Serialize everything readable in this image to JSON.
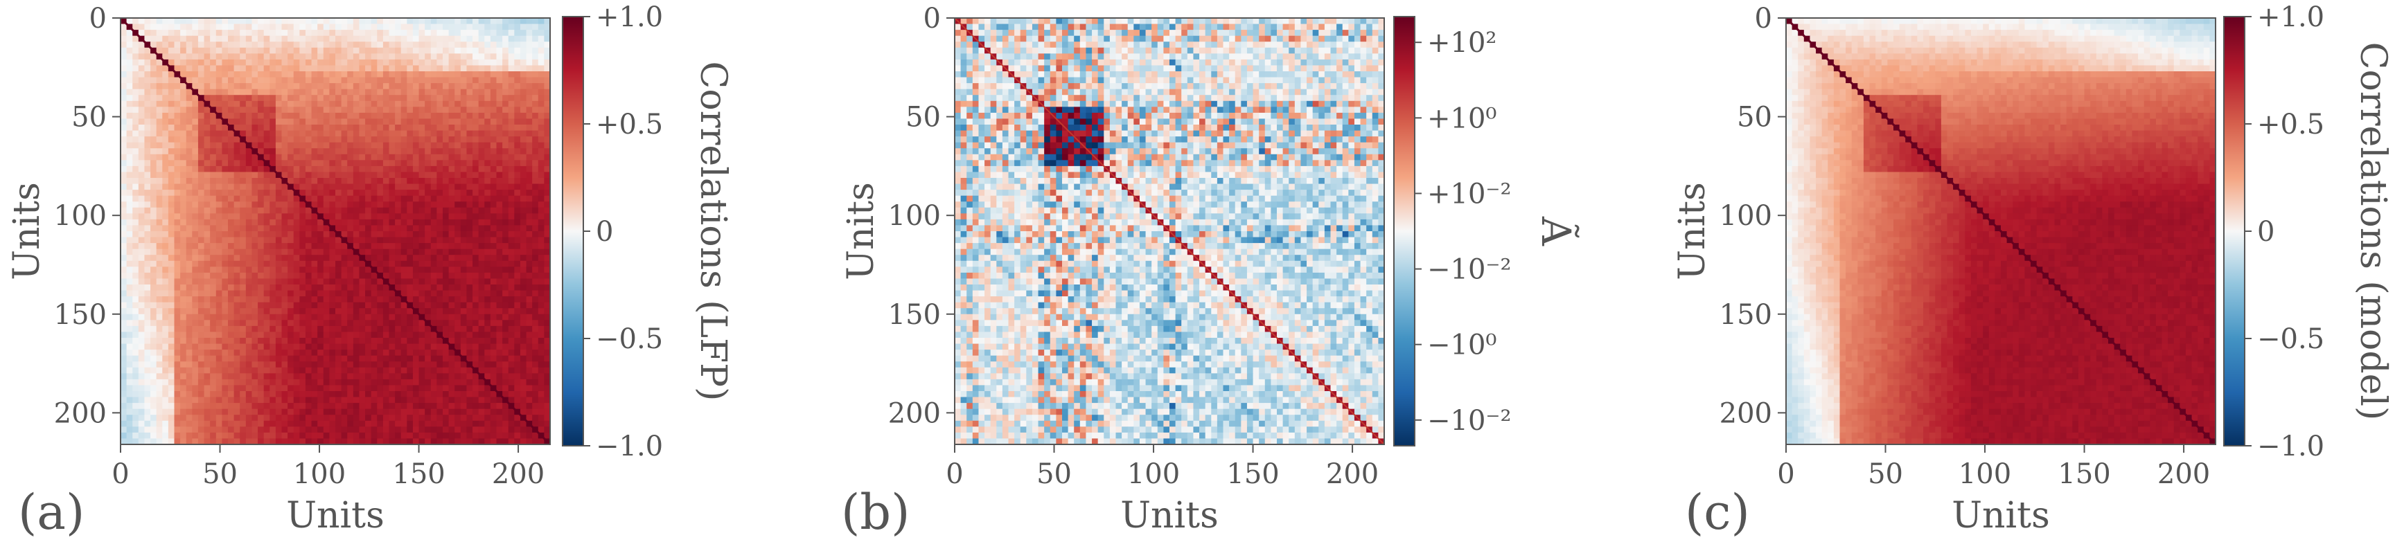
{
  "colors": {
    "text": "#555555",
    "heat_neg_strong": "#053061",
    "heat_neg": "#4393c3",
    "heat_zero": "#f7f7f7",
    "heat_pos": "#d6604d",
    "heat_pos_strong": "#67001f"
  },
  "chart_data": [
    {
      "type": "heatmap",
      "panel_label": "(a)",
      "xlabel": "Units",
      "ylabel": "Units",
      "colorbar_label": "Correlations (LFP)",
      "xlim": [
        0,
        216
      ],
      "ylim": [
        216,
        0
      ],
      "x_ticks": [
        0,
        50,
        100,
        150,
        200
      ],
      "y_ticks": [
        0,
        50,
        100,
        150,
        200
      ],
      "x_tick_labels": [
        "0",
        "50",
        "100",
        "150",
        "200"
      ],
      "y_tick_labels": [
        "0",
        "50",
        "100",
        "150",
        "200"
      ],
      "colorbar_range": [
        -1.0,
        1.0
      ],
      "colorbar_ticks": [
        1.0,
        0.5,
        0,
        -0.5,
        -1.0
      ],
      "colorbar_tick_labels": [
        "+1.0",
        "+0.5",
        "0",
        "−0.5",
        "−1.0"
      ],
      "colormap": "RdBu_r",
      "pattern": "symmetric correlation matrix, diagonal = 1, strong positive cluster around units 40-75, correlations grow positive for units 50-216, slightly negative between early units (0-30) and late units"
    },
    {
      "type": "heatmap",
      "panel_label": "(b)",
      "xlabel": "Units",
      "ylabel": "Units",
      "colorbar_label": "Ã",
      "xlim": [
        0,
        216
      ],
      "ylim": [
        216,
        0
      ],
      "x_ticks": [
        0,
        50,
        100,
        150,
        200
      ],
      "y_ticks": [
        0,
        50,
        100,
        150,
        200
      ],
      "x_tick_labels": [
        "0",
        "50",
        "100",
        "150",
        "200"
      ],
      "y_tick_labels": [
        "0",
        "50",
        "100",
        "150",
        "200"
      ],
      "colorbar_scale": "symlog",
      "colorbar_tick_labels": [
        "+10²",
        "+10⁰",
        "+10⁻²",
        "−10⁻²",
        "−10⁰",
        "−10⁻²"
      ],
      "colormap": "RdBu_r",
      "pattern": "mostly near-zero couplings, strong mixed-sign block around units 45-75, stripes at units 5-15, 45-75 and 105-112, faint diagonal bands"
    },
    {
      "type": "heatmap",
      "panel_label": "(c)",
      "xlabel": "Units",
      "ylabel": "Units",
      "colorbar_label": "Correlations (model)",
      "xlim": [
        0,
        216
      ],
      "ylim": [
        216,
        0
      ],
      "x_ticks": [
        0,
        50,
        100,
        150,
        200
      ],
      "y_ticks": [
        0,
        50,
        100,
        150,
        200
      ],
      "x_tick_labels": [
        "0",
        "50",
        "100",
        "150",
        "200"
      ],
      "y_tick_labels": [
        "0",
        "50",
        "100",
        "150",
        "200"
      ],
      "colorbar_range": [
        -1.0,
        1.0
      ],
      "colorbar_ticks": [
        1.0,
        0.5,
        0,
        -0.5,
        -1.0
      ],
      "colorbar_tick_labels": [
        "+1.0",
        "+0.5",
        "0",
        "−0.5",
        "−1.0"
      ],
      "colormap": "RdBu_r",
      "pattern": "model correlation matrix closely reproducing panel (a)"
    }
  ]
}
